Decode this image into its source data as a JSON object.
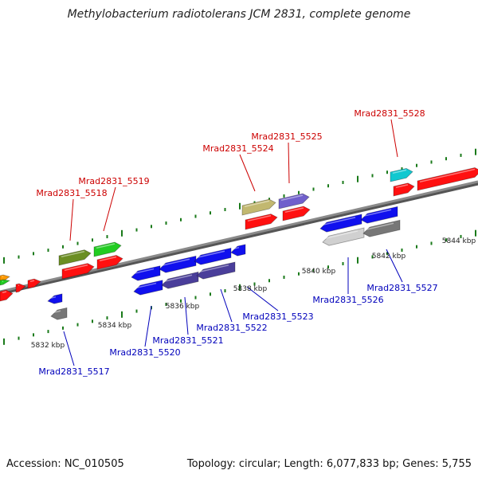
{
  "title": "Methylobacterium radiotolerans JCM 2831, complete genome",
  "footer": {
    "accession": "Accession: NC_010505",
    "summary": "Topology: circular; Length: 6,077,833 bp; Genes: 5,755"
  },
  "colors": {
    "backbone": "#8a8a8a",
    "tick": "#1a7a1a",
    "forward_label": "#cc0000",
    "reverse_label": "#0000bb",
    "red": "#ff1010",
    "blue": "#1010ee",
    "green": "#22cc22",
    "olive": "#6b8e23",
    "khaki": "#c2b870",
    "purple": "#7060cc",
    "cyan": "#10c8d0",
    "gray": "#777777",
    "lightgray": "#d0d0d0",
    "orange": "#ff9900",
    "slate": "#4a3e9a"
  },
  "kbp_labels": [
    "5832 kbp",
    "5834 kbp",
    "5836 kbp",
    "5838 kbp",
    "5840 kbp",
    "5842 kbp",
    "5844 kbp"
  ],
  "forward_genes": [
    "Mrad2831_5518",
    "Mrad2831_5519",
    "Mrad2831_5524",
    "Mrad2831_5525",
    "Mrad2831_5528"
  ],
  "reverse_genes": [
    "Mrad2831_5517",
    "Mrad2831_5520",
    "Mrad2831_5521",
    "Mrad2831_5522",
    "Mrad2831_5523",
    "Mrad2831_5526",
    "Mrad2831_5527"
  ]
}
